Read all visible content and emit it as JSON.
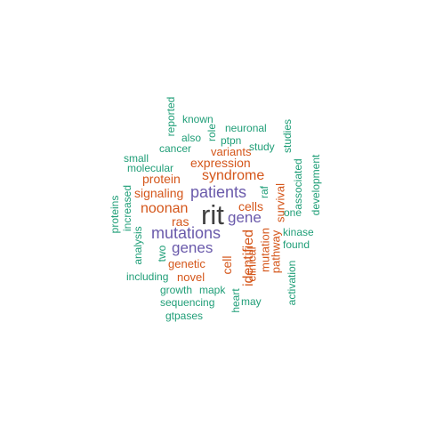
{
  "colors": {
    "tier1": "#404040",
    "tier2": "#6a5aab",
    "tier3": "#d4561a",
    "tier4": "#1f9e77",
    "background": "#ffffff"
  },
  "words": [
    {
      "text": "rit",
      "tier": "tier1"
    },
    {
      "text": "patients",
      "tier": "tier2"
    },
    {
      "text": "mutations",
      "tier": "tier2"
    },
    {
      "text": "genes",
      "tier": "tier2"
    },
    {
      "text": "gene",
      "tier": "tier2"
    },
    {
      "text": "syndrome",
      "tier": "tier3"
    },
    {
      "text": "expression",
      "tier": "tier3"
    },
    {
      "text": "protein",
      "tier": "tier3"
    },
    {
      "text": "signaling",
      "tier": "tier3"
    },
    {
      "text": "noonan",
      "tier": "tier3"
    },
    {
      "text": "ras",
      "tier": "tier3"
    },
    {
      "text": "genetic",
      "tier": "tier3"
    },
    {
      "text": "novel",
      "tier": "tier3"
    },
    {
      "text": "cells",
      "tier": "tier3"
    },
    {
      "text": "variants",
      "tier": "tier3"
    },
    {
      "text": "identified",
      "tier": "tier3"
    },
    {
      "text": "cell",
      "tier": "tier3"
    },
    {
      "text": "clinical",
      "tier": "tier3"
    },
    {
      "text": "mutation",
      "tier": "tier3"
    },
    {
      "text": "pathway",
      "tier": "tier3"
    },
    {
      "text": "survival",
      "tier": "tier3"
    },
    {
      "text": "known",
      "tier": "tier4"
    },
    {
      "text": "reported",
      "tier": "tier4"
    },
    {
      "text": "role",
      "tier": "tier4"
    },
    {
      "text": "neuronal",
      "tier": "tier4"
    },
    {
      "text": "also",
      "tier": "tier4"
    },
    {
      "text": "ptpn",
      "tier": "tier4"
    },
    {
      "text": "cancer",
      "tier": "tier4"
    },
    {
      "text": "study",
      "tier": "tier4"
    },
    {
      "text": "studies",
      "tier": "tier4"
    },
    {
      "text": "small",
      "tier": "tier4"
    },
    {
      "text": "molecular",
      "tier": "tier4"
    },
    {
      "text": "associated",
      "tier": "tier4"
    },
    {
      "text": "development",
      "tier": "tier4"
    },
    {
      "text": "raf",
      "tier": "tier4"
    },
    {
      "text": "one",
      "tier": "tier4"
    },
    {
      "text": "increased",
      "tier": "tier4"
    },
    {
      "text": "proteins",
      "tier": "tier4"
    },
    {
      "text": "analysis",
      "tier": "tier4"
    },
    {
      "text": "two",
      "tier": "tier4"
    },
    {
      "text": "kinase",
      "tier": "tier4"
    },
    {
      "text": "found",
      "tier": "tier4"
    },
    {
      "text": "including",
      "tier": "tier4"
    },
    {
      "text": "growth",
      "tier": "tier4"
    },
    {
      "text": "mapk",
      "tier": "tier4"
    },
    {
      "text": "heart",
      "tier": "tier4"
    },
    {
      "text": "may",
      "tier": "tier4"
    },
    {
      "text": "activation",
      "tier": "tier4"
    },
    {
      "text": "sequencing",
      "tier": "tier4"
    },
    {
      "text": "gtpases",
      "tier": "tier4"
    }
  ]
}
